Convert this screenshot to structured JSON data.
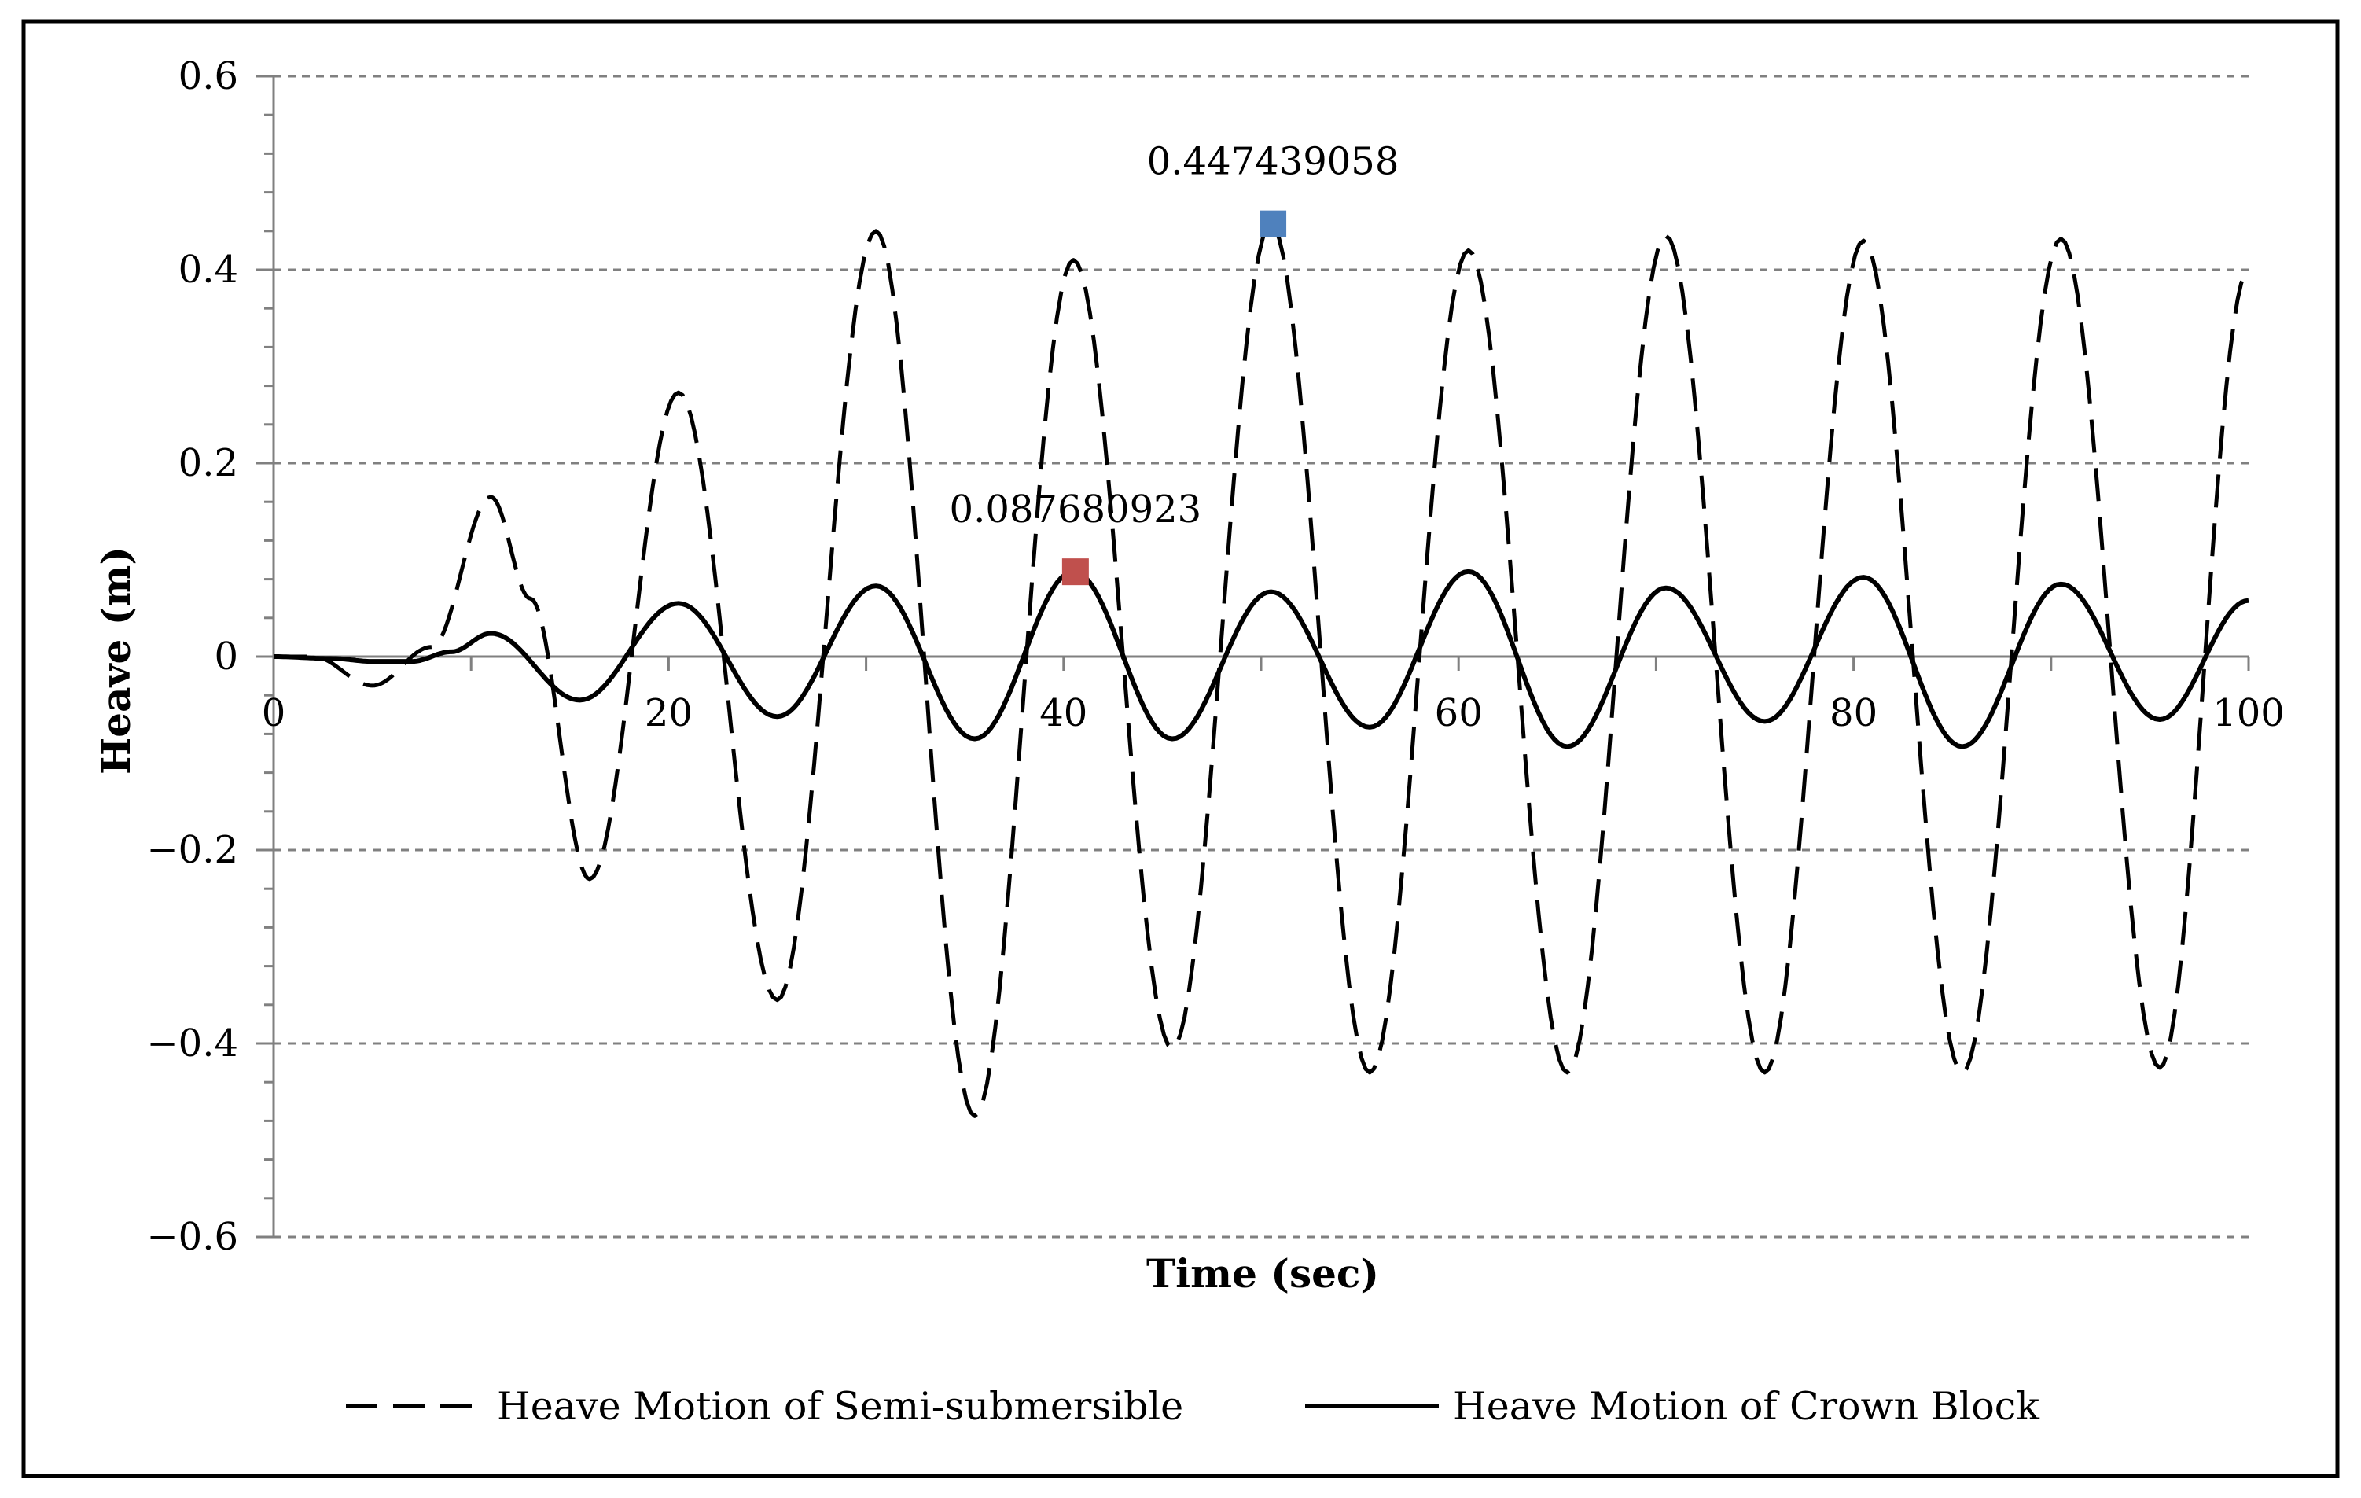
{
  "chart_data": {
    "type": "line",
    "title": "",
    "xlabel": "Time (sec)",
    "ylabel": "Heave (m)",
    "xlim": [
      0,
      100
    ],
    "ylim": [
      -0.6,
      0.6
    ],
    "x_ticks": [
      0,
      20,
      40,
      60,
      80,
      100
    ],
    "x_tick_labels": [
      "0",
      "20",
      "40",
      "60",
      "80",
      "100"
    ],
    "y_ticks": [
      0.6,
      0.4,
      0.2,
      0,
      -0.2,
      -0.4,
      -0.6
    ],
    "y_tick_labels": [
      "0.6",
      "0.4",
      "0.2",
      "0",
      "−0.2",
      "−0.4",
      "−0.6"
    ],
    "grid": "horizontal dashed",
    "legend_position": "bottom",
    "series": [
      {
        "name": "Heave Motion of Semi-submersible",
        "style": "dashed",
        "color": "#000000",
        "x": [
          0,
          2,
          5,
          8,
          11,
          13,
          16,
          20.5,
          25.5,
          30.5,
          35.5,
          40.5,
          45.5,
          50.5,
          55.5,
          60.5,
          65.5,
          70.5,
          75.5,
          80.5,
          85.5,
          90.5,
          95.5,
          100
        ],
        "y": [
          0,
          0,
          -0.03,
          0.01,
          0.165,
          0.06,
          -0.23,
          0.273,
          -0.355,
          0.44,
          -0.475,
          0.41,
          -0.405,
          0.447,
          -0.43,
          0.42,
          -0.43,
          0.435,
          -0.43,
          0.43,
          -0.43,
          0.432,
          -0.425,
          0.4
        ]
      },
      {
        "name": "Heave Motion of Crown Block",
        "style": "solid",
        "color": "#000000",
        "x": [
          0,
          3,
          5,
          7,
          9,
          11,
          15.5,
          20.5,
          25.5,
          30.5,
          35.5,
          40.5,
          45.5,
          50.5,
          55.5,
          60.5,
          65.5,
          70.5,
          75.5,
          80.5,
          85.5,
          90.5,
          95.5,
          100
        ],
        "y": [
          0,
          -0.002,
          -0.005,
          -0.005,
          0.005,
          0.024,
          -0.045,
          0.055,
          -0.062,
          0.073,
          -0.085,
          0.088,
          -0.085,
          0.067,
          -0.073,
          0.088,
          -0.093,
          0.071,
          -0.067,
          0.082,
          -0.093,
          0.075,
          -0.065,
          0.058
        ]
      }
    ],
    "highlighted_points": [
      {
        "x": 40.6,
        "y": 0.087680923,
        "label": "0.087680923",
        "color": "#c0504d"
      },
      {
        "x": 50.6,
        "y": 0.447439058,
        "label": "0.447439058",
        "color": "#4f81bd"
      }
    ]
  }
}
